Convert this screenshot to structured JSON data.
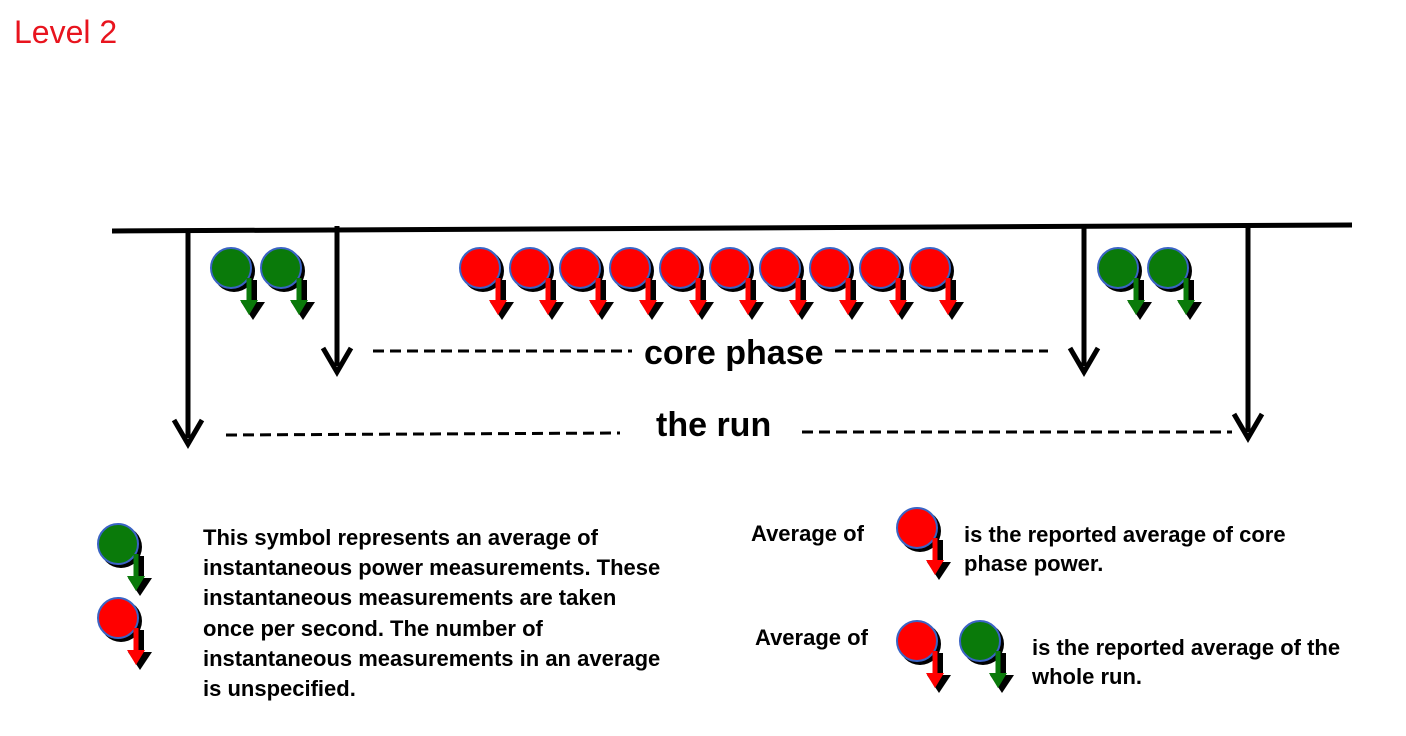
{
  "title": "Level 2",
  "labels": {
    "core_phase": "core phase",
    "the_run": "the run"
  },
  "legend": {
    "description": "This symbol represents an average of instantaneous power measurements. These instantaneous measurements are taken once per second. The number of instantaneous measurements in an average is unspecified.",
    "core_average_label": "Average of",
    "core_average_text": "is the reported average of core phase power.",
    "run_average_label": "Average of",
    "run_average_text": "is the reported average of the whole run."
  },
  "sequence": {
    "pre_core_green": 2,
    "core_red": 10,
    "post_core_green": 2
  },
  "colors": {
    "title": "#e8141e",
    "red_symbol": "#ff0000",
    "green_symbol": "#0a7a0a",
    "line": "#000000"
  },
  "icons": {
    "red_symbol": "red-measurement-icon",
    "green_symbol": "green-measurement-icon"
  }
}
